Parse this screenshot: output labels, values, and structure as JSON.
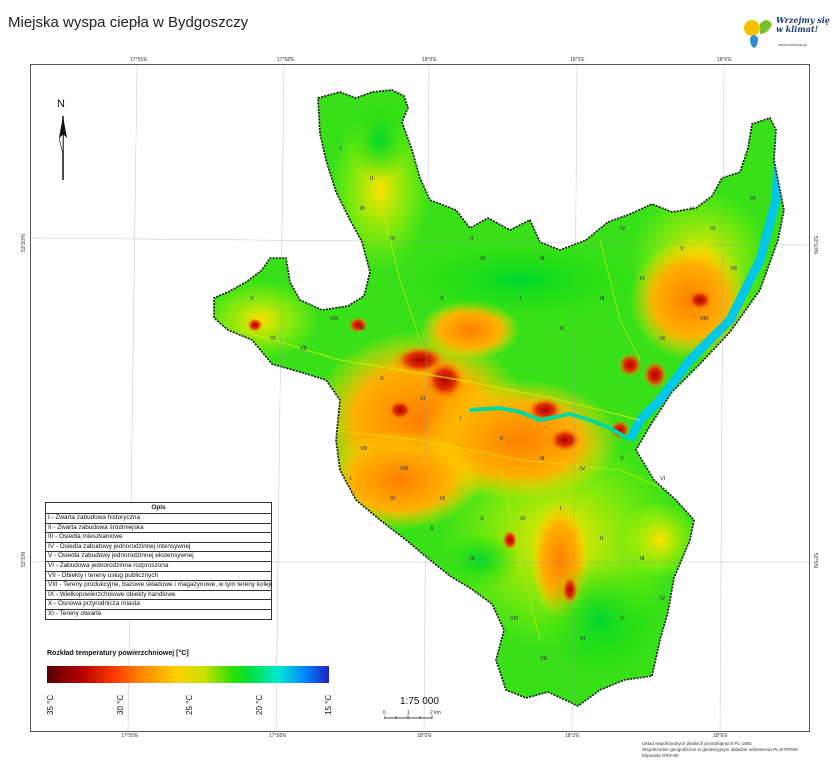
{
  "title": "Miejska wyspa ciepła w Bydgoszczy",
  "logo": {
    "text_line1": "Wrzejmy się",
    "text_line2": "w klimat!",
    "url": "www.fundacja.pl",
    "colors": [
      "#f2c200",
      "#7bbf2a",
      "#2a8fd6"
    ]
  },
  "coordinates": {
    "top": [
      "17°55'E",
      "17°58'E",
      "18°0'E",
      "18°3'E",
      "18°6'E"
    ],
    "bottom": [
      "17°55'E",
      "17°58'E",
      "18°0'E",
      "18°3'E",
      "18°6'E"
    ],
    "left": [
      "53°10'N",
      "53°5'N"
    ],
    "right": [
      "53°10'N",
      "53°5'N"
    ]
  },
  "north_label": "N",
  "legend": {
    "title": "Opis",
    "items": [
      "I - Zwarta zabudowa historyczna",
      "II - Zwarta zabudowa śródmiejska",
      "III - Osiedla mieszkaniowe",
      "IV - Osiedla zabudowy jednorodzinnej intensywnej",
      "V - Osiedla zabudowy jednorodzinnej ekstensywnej",
      "VI - Zabudowa jednorodzinna rozproszona",
      "VII - Obiekty i tereny usług publicznych",
      "VIII - Tereny produkcyjne, bazowe składowe i magazynowe, w tym tereny kolejowe",
      "IX - Wielkopowierzchniowe obiekty handlowe",
      "X - Osnowa przyrodnicza miasta",
      "XI - Tereny otwarte"
    ]
  },
  "temperature_ramp": {
    "title": "Rozkład temperatury powierzchniowej [°C]",
    "ticks": [
      "35 °C",
      "30 °C",
      "25 °C",
      "20 °C",
      "15 °C"
    ],
    "min": 15,
    "max": 35
  },
  "scale": {
    "label": "1:75 000",
    "ticks": [
      "0",
      "1",
      "2 km"
    ]
  },
  "footer": [
    "Układ współrzędnych płaskich prostokątnych PL-1992",
    "Współrzędne geograficzne w geodezyjnym układzie odniesienia PL-ETRF89",
    "Elipsoida GRS-80"
  ],
  "zone_labels": [
    "I",
    "II",
    "III",
    "IV",
    "V",
    "VI",
    "VII",
    "VIII",
    "IX",
    "X",
    "XI"
  ],
  "colors": {
    "hot": "#c80000",
    "warm": "#ff9a00",
    "mid": "#ffe000",
    "cool": "#2ee000",
    "water": "#00c8e8"
  }
}
